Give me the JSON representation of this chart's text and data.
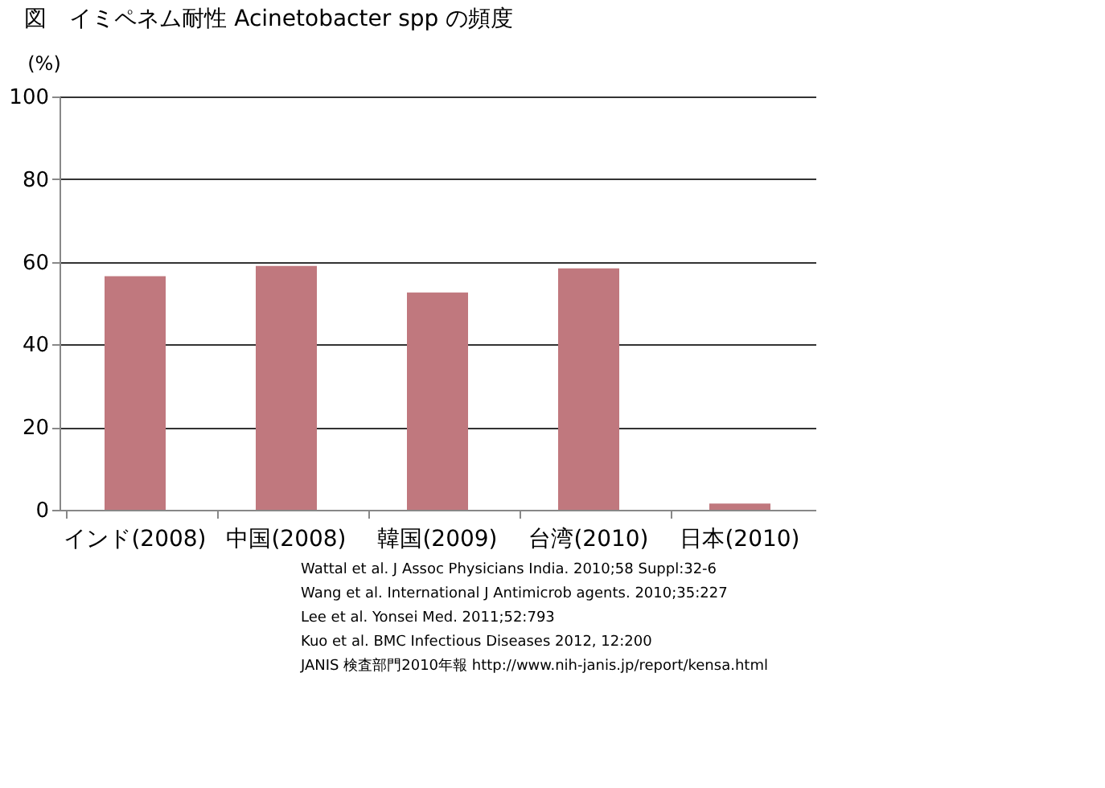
{
  "chart_data": {
    "type": "bar",
    "title": "図　イミペネム耐性 Acinetobacter spp の頻度",
    "ylabel": "(%)",
    "categories": [
      "インド(2008)",
      "中国(2008)",
      "韓国(2009)",
      "台湾(2010)",
      "日本(2010)"
    ],
    "values": [
      56.5,
      59,
      52.6,
      58.4,
      1.5
    ],
    "color": "#c0787e",
    "ylim": [
      0,
      100
    ],
    "yticks": [
      0,
      20,
      40,
      60,
      80,
      100
    ],
    "grid": "y",
    "annotations": [
      "Wattal et al. J Assoc Physicians India. 2010;58 Suppl:32-6",
      "Wang et al. International J Antimicrob agents. 2010;35:227",
      "Lee et al. Yonsei Med. 2011;52:793",
      "Kuo et al. BMC Infectious Diseases 2012, 12:200",
      "JANIS 検査部門2010年報 http://www.nih-janis.jp/report/kensa.html"
    ]
  }
}
